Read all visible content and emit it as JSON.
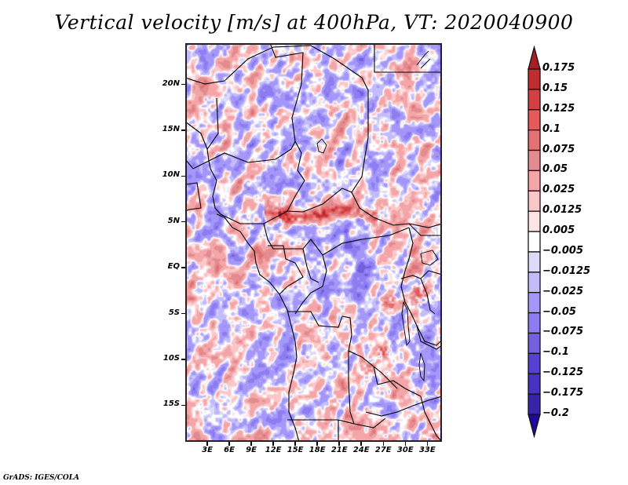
{
  "title": "Vertical velocity [m/s] at 400hPa, VT: 2020040900",
  "footer": "GrADS: IGES/COLA",
  "chart_data": {
    "type": "heatmap",
    "title": "Vertical velocity [m/s] at 400hPa, VT: 2020040900",
    "variable": "Vertical velocity",
    "units": "m/s",
    "level": "400hPa",
    "valid_time": "2020040900",
    "xlabel": "",
    "ylabel": "",
    "lon_range": [
      0,
      35
    ],
    "lat_range": [
      -19,
      24.5
    ],
    "xticks": [
      {
        "value": 3,
        "label": "3E"
      },
      {
        "value": 6,
        "label": "6E"
      },
      {
        "value": 9,
        "label": "9E"
      },
      {
        "value": 12,
        "label": "12E"
      },
      {
        "value": 15,
        "label": "15E"
      },
      {
        "value": 18,
        "label": "18E"
      },
      {
        "value": 21,
        "label": "21E"
      },
      {
        "value": 24,
        "label": "24E"
      },
      {
        "value": 27,
        "label": "27E"
      },
      {
        "value": 30,
        "label": "30E"
      },
      {
        "value": 33,
        "label": "33E"
      }
    ],
    "yticks": [
      {
        "value": 20,
        "label": "20N"
      },
      {
        "value": 15,
        "label": "15N"
      },
      {
        "value": 10,
        "label": "10N"
      },
      {
        "value": 5,
        "label": "5N"
      },
      {
        "value": 0,
        "label": "EQ"
      },
      {
        "value": -5,
        "label": "5S"
      },
      {
        "value": -10,
        "label": "10S"
      },
      {
        "value": -15,
        "label": "15S"
      }
    ],
    "colorbar": {
      "orientation": "vertical",
      "placement": "right",
      "extend": "both",
      "levels": [
        {
          "label": "0.175",
          "value": 0.175
        },
        {
          "label": "0.15",
          "value": 0.15
        },
        {
          "label": "0.125",
          "value": 0.125
        },
        {
          "label": "0.1",
          "value": 0.1
        },
        {
          "label": "0.075",
          "value": 0.075
        },
        {
          "label": "0.05",
          "value": 0.05
        },
        {
          "label": "0.025",
          "value": 0.025
        },
        {
          "label": "0.0125",
          "value": 0.0125
        },
        {
          "label": "0.005",
          "value": 0.005
        },
        {
          "label": "-0.005",
          "value": -0.005
        },
        {
          "label": "-0.0125",
          "value": -0.0125
        },
        {
          "label": "-0.025",
          "value": -0.025
        },
        {
          "label": "-0.05",
          "value": -0.05
        },
        {
          "label": "-0.075",
          "value": -0.075
        },
        {
          "label": "-0.1",
          "value": -0.1
        },
        {
          "label": "-0.125",
          "value": -0.125
        },
        {
          "label": "-0.175",
          "value": -0.175
        },
        {
          "label": "-0.2",
          "value": -0.2
        }
      ],
      "colors": [
        "#a81e24",
        "#be2d2f",
        "#d24044",
        "#e55a5a",
        "#e27174",
        "#e28c90",
        "#f4a5a7",
        "#fac6c8",
        "#fde4e6",
        "#ffffff",
        "#dcdcfa",
        "#c3bcfa",
        "#a596fa",
        "#8c7ef0",
        "#7460dc",
        "#5540d0",
        "#4533c0",
        "#3524a8",
        "#20089e"
      ]
    }
  }
}
